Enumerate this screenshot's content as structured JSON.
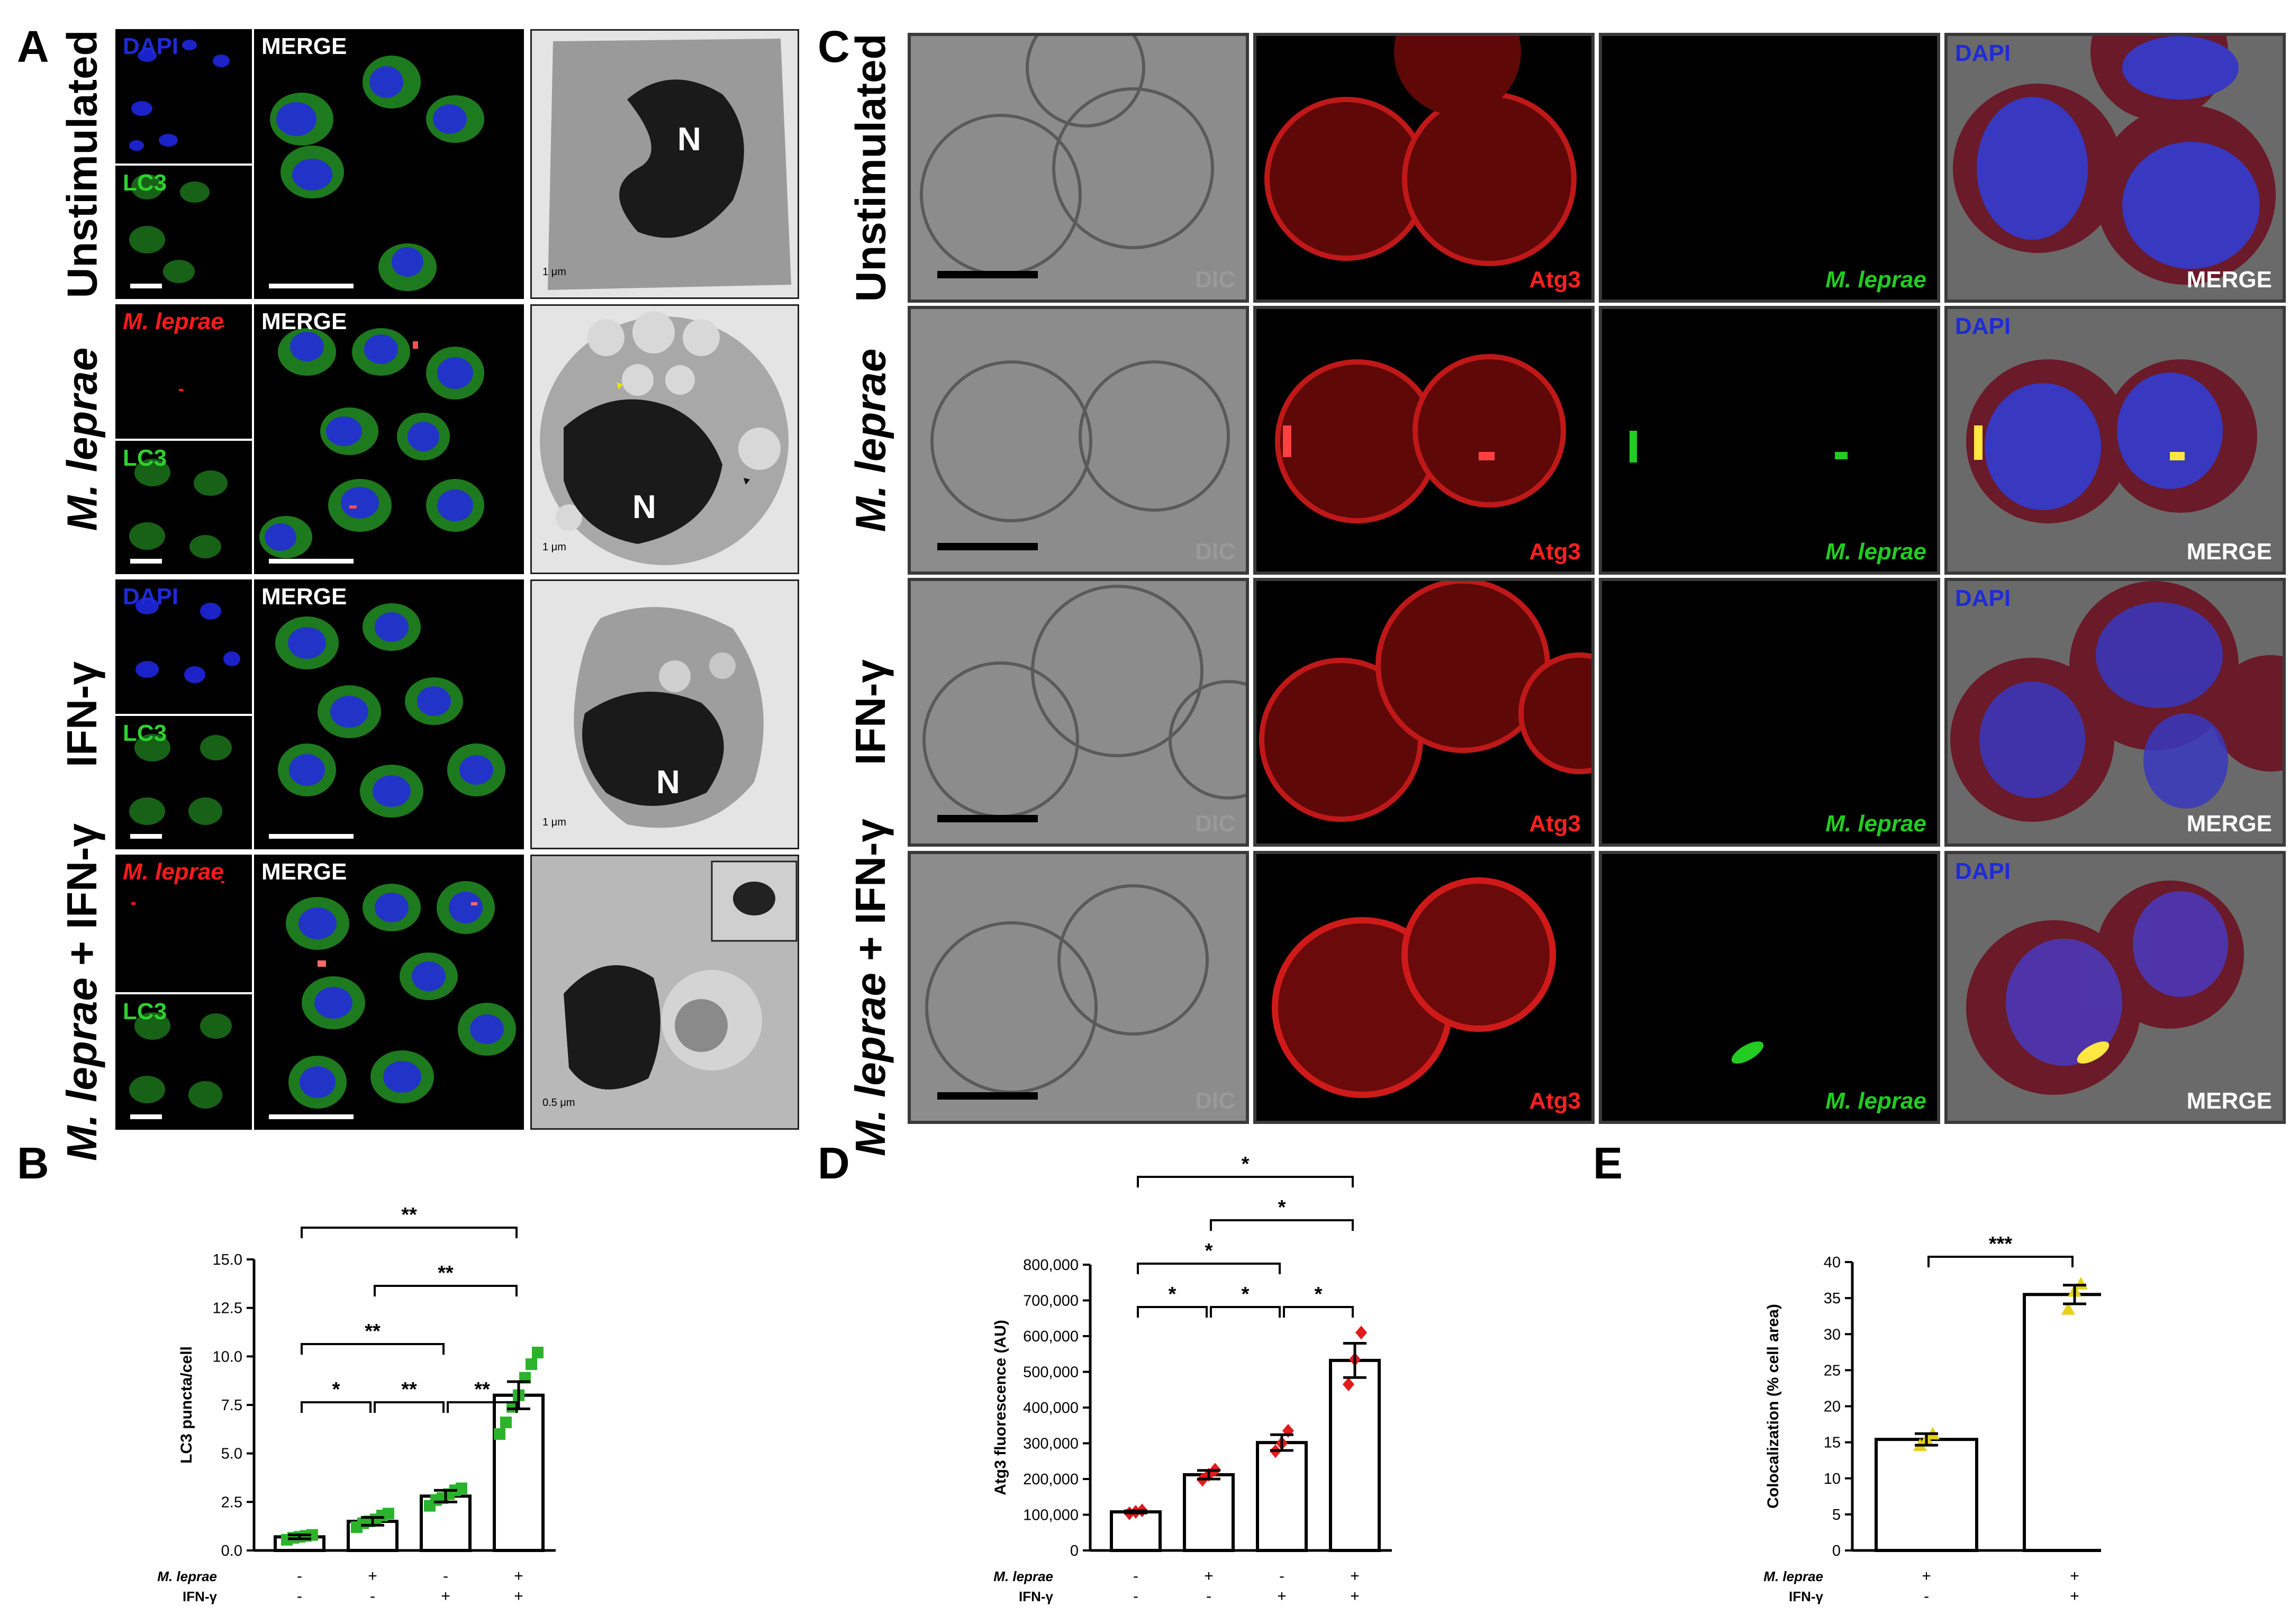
{
  "figure": {
    "panel_letters": [
      "A",
      "B",
      "C",
      "D",
      "E"
    ],
    "conditions": [
      {
        "prefix": "",
        "italic": "",
        "suffix": "Unstimulated"
      },
      {
        "prefix": "",
        "italic": "M. leprae",
        "suffix": ""
      },
      {
        "prefix": "",
        "italic": "",
        "suffix": "IFN-γ"
      },
      {
        "prefix": "",
        "italic": "M. leprae",
        "suffix": " + IFN-γ"
      }
    ],
    "panel_a": {
      "top_labels": [
        "DAPI",
        "M. leprae",
        "DAPI",
        "M. leprae"
      ],
      "bottom_label": "LC3",
      "merge_label": "MERGE",
      "nucleus_label": "N",
      "tem_scalebars": [
        "1 μm",
        "1 μm",
        "1 μm",
        "0.5 μm"
      ]
    },
    "panel_c": {
      "dic_label": "DIC",
      "atg3_label": "Atg3",
      "mleprae_label": "M. leprae",
      "dapi_label": "DAPI",
      "merge_label": "MERGE"
    },
    "colors": {
      "dapi": "#1e2bd6",
      "lc3": "#2fd12f",
      "mleprae_red": "#ff1a1a",
      "atg3": "#ff2020",
      "mleprae_green": "#22cc22",
      "dic": "#8a8a8a",
      "merge": "#ffffff",
      "b_points": "#2bb32b",
      "d_points": "#e41a1c",
      "e_points": "#e6d11a"
    }
  },
  "chart_data": [
    {
      "panel": "B",
      "type": "bar",
      "ylabel": "LC3 puncta/cell",
      "ylim": [
        0,
        15
      ],
      "yticks": [
        "0.0",
        "2.5",
        "5.0",
        "7.5",
        "10.0",
        "12.5",
        "15.0"
      ],
      "ytick_values": [
        0,
        2.5,
        5,
        7.5,
        10,
        12.5,
        15
      ],
      "row_labels": [
        "M. leprae",
        "IFN-γ"
      ],
      "signs": [
        [
          "-",
          "+",
          "-",
          "+"
        ],
        [
          "-",
          "-",
          "+",
          "+"
        ]
      ],
      "values": [
        0.7,
        1.5,
        2.8,
        8.0
      ],
      "sem": [
        0.1,
        0.2,
        0.3,
        0.7
      ],
      "points": [
        [
          0.55,
          0.65,
          0.7,
          0.75,
          0.8
        ],
        [
          1.2,
          1.4,
          1.5,
          1.6,
          1.8,
          1.9
        ],
        [
          2.3,
          2.6,
          2.7,
          2.9,
          3.1,
          3.2
        ],
        [
          6.0,
          6.6,
          7.4,
          8.0,
          8.9,
          9.6,
          10.2
        ]
      ],
      "marker": "square",
      "significance": [
        {
          "from": 0,
          "to": 1,
          "label": "*",
          "level": 0
        },
        {
          "from": 1,
          "to": 2,
          "label": "**",
          "level": 0
        },
        {
          "from": 2,
          "to": 3,
          "label": "**",
          "level": 0
        },
        {
          "from": 0,
          "to": 2,
          "label": "**",
          "level": 1
        },
        {
          "from": 1,
          "to": 3,
          "label": "**",
          "level": 2
        },
        {
          "from": 0,
          "to": 3,
          "label": "**",
          "level": 3
        }
      ]
    },
    {
      "panel": "D",
      "type": "bar",
      "ylabel": "Atg3 fluorescence (AU)",
      "ylim": [
        0,
        800000
      ],
      "yticks": [
        "0",
        "100,000",
        "200,000",
        "300,000",
        "400,000",
        "500,000",
        "600,000",
        "700,000",
        "800,000"
      ],
      "ytick_values": [
        0,
        100000,
        200000,
        300000,
        400000,
        500000,
        600000,
        700000,
        800000
      ],
      "row_labels": [
        "M. leprae",
        "IFN-γ"
      ],
      "signs": [
        [
          "-",
          "+",
          "-",
          "+"
        ],
        [
          "-",
          "-",
          "+",
          "+"
        ]
      ],
      "values": [
        108000,
        212000,
        302000,
        532000
      ],
      "sem": [
        3000,
        12000,
        22000,
        48000
      ],
      "points": [
        [
          104000,
          108000,
          112000
        ],
        [
          198000,
          212000,
          226000
        ],
        [
          278000,
          300000,
          335000
        ],
        [
          465000,
          535000,
          610000
        ]
      ],
      "marker": "diamond",
      "significance": [
        {
          "from": 0,
          "to": 1,
          "label": "*",
          "level": 0
        },
        {
          "from": 1,
          "to": 2,
          "label": "*",
          "level": 0
        },
        {
          "from": 2,
          "to": 3,
          "label": "*",
          "level": 0
        },
        {
          "from": 0,
          "to": 2,
          "label": "*",
          "level": 1
        },
        {
          "from": 1,
          "to": 3,
          "label": "*",
          "level": 2
        },
        {
          "from": 0,
          "to": 3,
          "label": "*",
          "level": 3
        }
      ]
    },
    {
      "panel": "E",
      "type": "bar",
      "ylabel": "Colocalization (% cell area)",
      "ylim": [
        0,
        40
      ],
      "yticks": [
        "0",
        "5",
        "10",
        "15",
        "20",
        "25",
        "30",
        "35",
        "40"
      ],
      "ytick_values": [
        0,
        5,
        10,
        15,
        20,
        25,
        30,
        35,
        40
      ],
      "row_labels": [
        "M. leprae",
        "IFN-γ"
      ],
      "signs": [
        [
          "+",
          "+"
        ],
        [
          "-",
          "+"
        ]
      ],
      "values": [
        15.4,
        35.5
      ],
      "sem": [
        0.8,
        1.3
      ],
      "points": [
        [
          14.6,
          15.4,
          16.2
        ],
        [
          33.5,
          36.0,
          37.0
        ]
      ],
      "marker": "triangle",
      "significance": [
        {
          "from": 0,
          "to": 1,
          "label": "***",
          "level": 0
        }
      ]
    }
  ]
}
